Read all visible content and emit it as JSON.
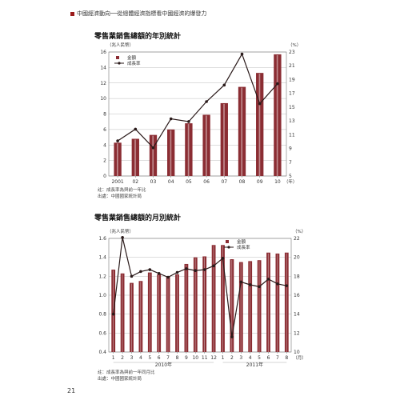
{
  "header": {
    "text": "中國經濟動向──從總體經濟指標看中國經濟的爆發力"
  },
  "page_number": "21",
  "colors": {
    "bar": "#8b2d33",
    "bar_highlight": "#e9d6d6",
    "line": "#2a1a1a",
    "accent": "#9b1b1b"
  },
  "chart_data": [
    {
      "type": "bar",
      "title": "零售業銷售總額的年別統計",
      "y_unit": "（兆人民幣）",
      "y2_unit": "（%）",
      "categories": [
        "2001",
        "02",
        "03",
        "04",
        "05",
        "06",
        "07",
        "08",
        "09",
        "10"
      ],
      "x_unit": "（年）",
      "ylim": [
        0,
        16
      ],
      "yticks": [
        0,
        2,
        4,
        6,
        8,
        10,
        12,
        14,
        16
      ],
      "y2lim": [
        5,
        23
      ],
      "y2ticks": [
        5,
        7,
        9,
        11,
        13,
        15,
        17,
        19,
        21,
        23
      ],
      "grid": true,
      "legend_position": "top-left",
      "series": [
        {
          "name": "金額",
          "kind": "bar",
          "axis": "left",
          "values": [
            4.3,
            4.8,
            5.3,
            6.0,
            6.8,
            7.9,
            9.4,
            11.5,
            13.3,
            15.7
          ]
        },
        {
          "name": "成長率",
          "kind": "line",
          "axis": "right",
          "values": [
            10.1,
            11.8,
            9.1,
            13.3,
            12.9,
            15.8,
            18.2,
            22.7,
            15.5,
            18.4
          ]
        }
      ],
      "notes": [
        "註：成長率為與前一年比",
        "出處：中國國家統計局"
      ]
    },
    {
      "type": "bar",
      "title": "零售業銷售總額的月別統計",
      "y_unit": "（兆人民幣）",
      "y2_unit": "（%）",
      "categories": [
        "1",
        "2",
        "3",
        "4",
        "5",
        "6",
        "7",
        "8",
        "9",
        "10",
        "11",
        "12",
        "1",
        "2",
        "3",
        "4",
        "5",
        "6",
        "7",
        "8"
      ],
      "x_unit": "（月）",
      "year_labels": [
        "2010年",
        "2011年"
      ],
      "ylim": [
        0.4,
        1.6
      ],
      "yticks": [
        0.4,
        0.6,
        0.8,
        1.0,
        1.2,
        1.4,
        1.6
      ],
      "y2lim": [
        10,
        22
      ],
      "y2ticks": [
        10,
        12,
        14,
        16,
        18,
        20,
        22
      ],
      "grid": true,
      "legend_position": "top-right",
      "series": [
        {
          "name": "金額",
          "kind": "bar",
          "axis": "left",
          "values": [
            1.27,
            1.23,
            1.13,
            1.15,
            1.24,
            1.22,
            1.2,
            1.22,
            1.33,
            1.4,
            1.41,
            1.53,
            1.53,
            1.38,
            1.35,
            1.36,
            1.37,
            1.45,
            1.44,
            1.45
          ]
        },
        {
          "name": "成長率",
          "kind": "line",
          "axis": "right",
          "values": [
            14.0,
            22.1,
            18.0,
            18.5,
            18.7,
            18.3,
            17.9,
            18.4,
            18.8,
            18.6,
            18.7,
            19.1,
            19.9,
            11.6,
            17.4,
            17.1,
            16.9,
            17.7,
            17.2,
            17.0
          ]
        }
      ],
      "notes": [
        "註：成長率為與前一年同月比",
        "出處：中國國家統計局"
      ]
    }
  ]
}
